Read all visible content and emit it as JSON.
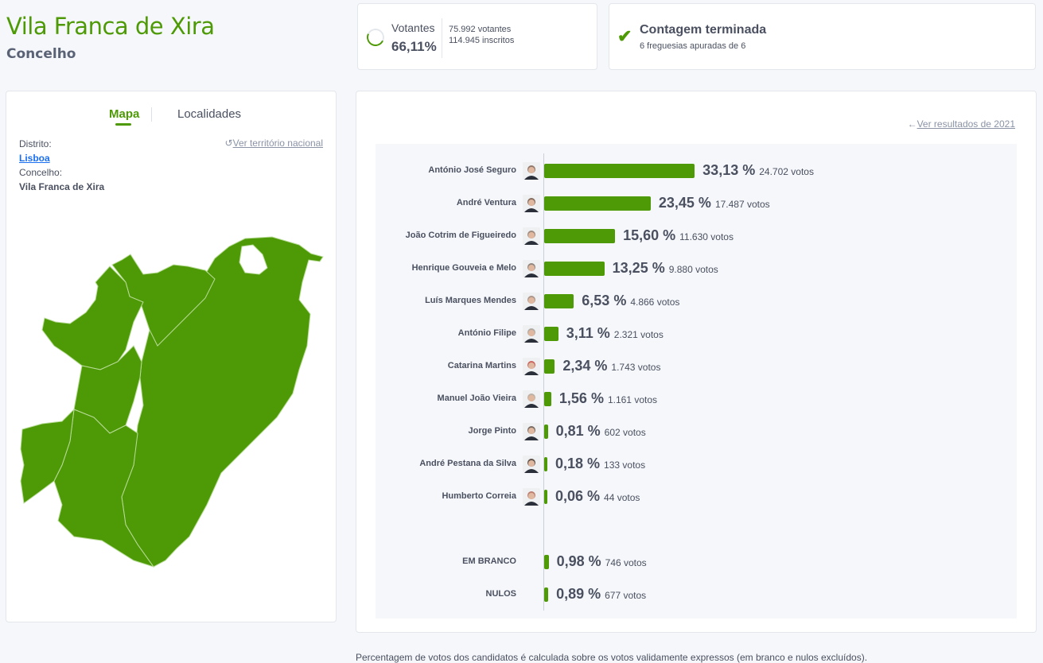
{
  "header": {
    "title": "Vila Franca de Xira",
    "subtitle": "Concelho"
  },
  "turnout": {
    "label": "Votantes",
    "percent": "66,11%",
    "percent_value": 66.11,
    "voters": "75.992 votantes",
    "registered": "114.945 inscritos"
  },
  "count_status": {
    "title": "Contagem terminada",
    "detail": "6 freguesias apuradas de 6",
    "icon": "check-icon"
  },
  "map_panel": {
    "tabs": [
      {
        "label": "Mapa",
        "active": true
      },
      {
        "label": "Localidades",
        "active": false
      }
    ],
    "district_label": "Distrito:",
    "district": "Lisboa",
    "municipality_label": "Concelho:",
    "municipality": "Vila Franca de Xira",
    "national_link": "Ver território nacional",
    "map_color": "#4e9a06"
  },
  "results": {
    "previous_link": "Ver resultados de 2021",
    "candidates": [
      {
        "name": "António José Seguro",
        "percent": "33,13 %",
        "value": 33.13,
        "votes": "24.702 votos"
      },
      {
        "name": "André Ventura",
        "percent": "23,45 %",
        "value": 23.45,
        "votes": "17.487 votos"
      },
      {
        "name": "João Cotrim de Figueiredo",
        "percent": "15,60 %",
        "value": 15.6,
        "votes": "11.630 votos"
      },
      {
        "name": "Henrique Gouveia e Melo",
        "percent": "13,25 %",
        "value": 13.25,
        "votes": "9.880 votos"
      },
      {
        "name": "Luís Marques Mendes",
        "percent": "6,53 %",
        "value": 6.53,
        "votes": "4.866 votos"
      },
      {
        "name": "António Filipe",
        "percent": "3,11 %",
        "value": 3.11,
        "votes": "2.321 votos"
      },
      {
        "name": "Catarina Martins",
        "percent": "2,34 %",
        "value": 2.34,
        "votes": "1.743 votos"
      },
      {
        "name": "Manuel João Vieira",
        "percent": "1,56 %",
        "value": 1.56,
        "votes": "1.161 votos"
      },
      {
        "name": "Jorge Pinto",
        "percent": "0,81 %",
        "value": 0.81,
        "votes": "602 votos"
      },
      {
        "name": "André Pestana da Silva",
        "percent": "0,18 %",
        "value": 0.18,
        "votes": "133 votos"
      },
      {
        "name": "Humberto Correia",
        "percent": "0,06 %",
        "value": 0.06,
        "votes": "44 votos"
      }
    ],
    "other": [
      {
        "name": "EM BRANCO",
        "percent": "0,98 %",
        "value": 0.98,
        "votes": "746 votos"
      },
      {
        "name": "NULOS",
        "percent": "0,89 %",
        "value": 0.89,
        "votes": "677 votos"
      }
    ],
    "bar_color": "#4e9a06"
  },
  "footnote": "Percentagem de votos dos candidatos é calculada sobre os votos validamente expressos (em branco e nulos excluídos)."
}
